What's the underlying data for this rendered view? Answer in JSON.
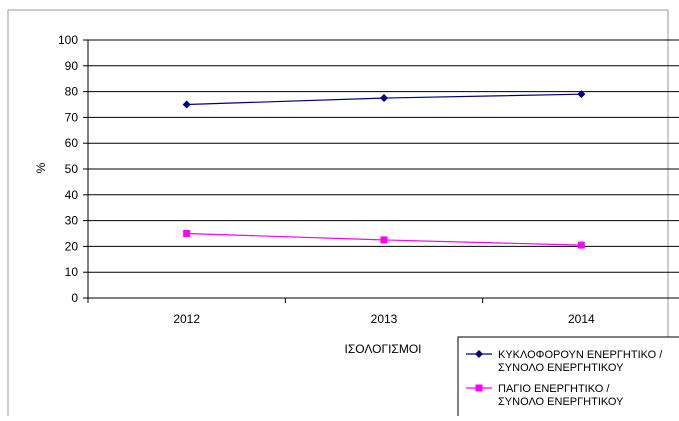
{
  "chart_data": {
    "type": "line",
    "title": "",
    "xlabel": "ΙΣΟΛΟΓΙΣΜΟΙ",
    "ylabel": "%",
    "categories": [
      "2012",
      "2013",
      "2014"
    ],
    "ylim": [
      0,
      100
    ],
    "yticks": [
      0,
      10,
      20,
      30,
      40,
      50,
      60,
      70,
      80,
      90,
      100
    ],
    "grid": true,
    "legend_position": "bottom-right",
    "series": [
      {
        "name_lines": [
          "ΚΥΚΛΟΦΟΡΟΥΝ ΕΝΕΡΓΗΤΙΚΟ /",
          "ΣΥΝΟΛΟ ΕΝΕΡΓΗΤΙΚΟΥ"
        ],
        "values": [
          75,
          77.5,
          79
        ],
        "color": "#000080",
        "marker": "diamond"
      },
      {
        "name_lines": [
          "ΠΑΓΙΟ ΕΝΕΡΓΗΤΙΚΟ /",
          "ΣΥΝΟΛΟ ΕΝΕΡΓΗΤΙΚΟΥ"
        ],
        "values": [
          25,
          22.5,
          20.5
        ],
        "color": "#ff00ff",
        "marker": "square"
      }
    ]
  }
}
